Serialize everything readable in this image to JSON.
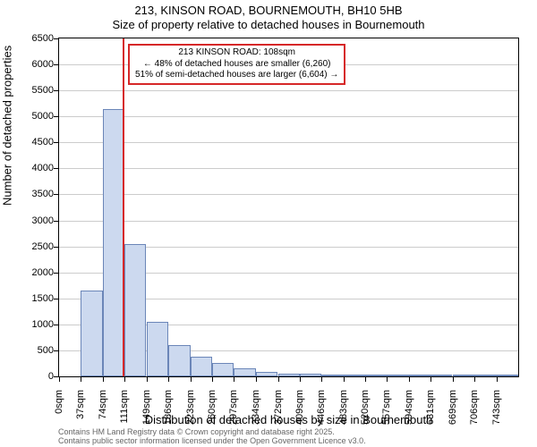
{
  "chart": {
    "type": "histogram",
    "title": "213, KINSON ROAD, BOURNEMOUTH, BH10 5HB",
    "subtitle": "Size of property relative to detached houses in Bournemouth",
    "xlabel": "Distribution of detached houses by size in Bournemouth",
    "ylabel": "Number of detached properties",
    "background_color": "#ffffff",
    "plot_border_color": "#000000",
    "grid_color": "#cccccc",
    "bar_fill": "#ccd9ef",
    "bar_edge": "#6b86b8",
    "ref_line_color": "#d62728",
    "annotation_border": "#d62728",
    "title_fontsize": 13,
    "label_fontsize": 13,
    "tick_fontsize": 11,
    "annotation_fontsize": 10,
    "footer_fontsize": 9,
    "footer_color": "#666666",
    "ylim": [
      0,
      6500
    ],
    "yticks": [
      0,
      500,
      1000,
      1500,
      2000,
      2500,
      3000,
      3500,
      4000,
      4500,
      5000,
      5500,
      6000,
      6500
    ],
    "xlim": [
      0,
      780
    ],
    "xtick_step": 37,
    "xtick_unit": "sqm",
    "xticks": [
      0,
      37,
      74,
      111,
      149,
      186,
      223,
      260,
      297,
      334,
      372,
      409,
      446,
      483,
      520,
      557,
      594,
      631,
      669,
      706,
      743
    ],
    "bin_width": 37,
    "bars": [
      {
        "x": 0,
        "count": 0
      },
      {
        "x": 37,
        "count": 1650
      },
      {
        "x": 74,
        "count": 5150
      },
      {
        "x": 111,
        "count": 2550
      },
      {
        "x": 149,
        "count": 1050
      },
      {
        "x": 186,
        "count": 600
      },
      {
        "x": 223,
        "count": 370
      },
      {
        "x": 260,
        "count": 250
      },
      {
        "x": 297,
        "count": 150
      },
      {
        "x": 334,
        "count": 90
      },
      {
        "x": 372,
        "count": 60
      },
      {
        "x": 409,
        "count": 45
      },
      {
        "x": 446,
        "count": 30
      },
      {
        "x": 483,
        "count": 20
      },
      {
        "x": 520,
        "count": 12
      },
      {
        "x": 557,
        "count": 8
      },
      {
        "x": 594,
        "count": 6
      },
      {
        "x": 631,
        "count": 4
      },
      {
        "x": 669,
        "count": 3
      },
      {
        "x": 706,
        "count": 2
      },
      {
        "x": 743,
        "count": 1
      }
    ],
    "reference": {
      "x_value": 108,
      "label_line1": "213 KINSON ROAD: 108sqm",
      "label_line2": "← 48% of detached houses are smaller (6,260)",
      "label_line3": "51% of semi-detached houses are larger (6,604) →"
    },
    "footer_line1": "Contains HM Land Registry data © Crown copyright and database right 2025.",
    "footer_line2": "Contains public sector information licensed under the Open Government Licence v3.0."
  }
}
